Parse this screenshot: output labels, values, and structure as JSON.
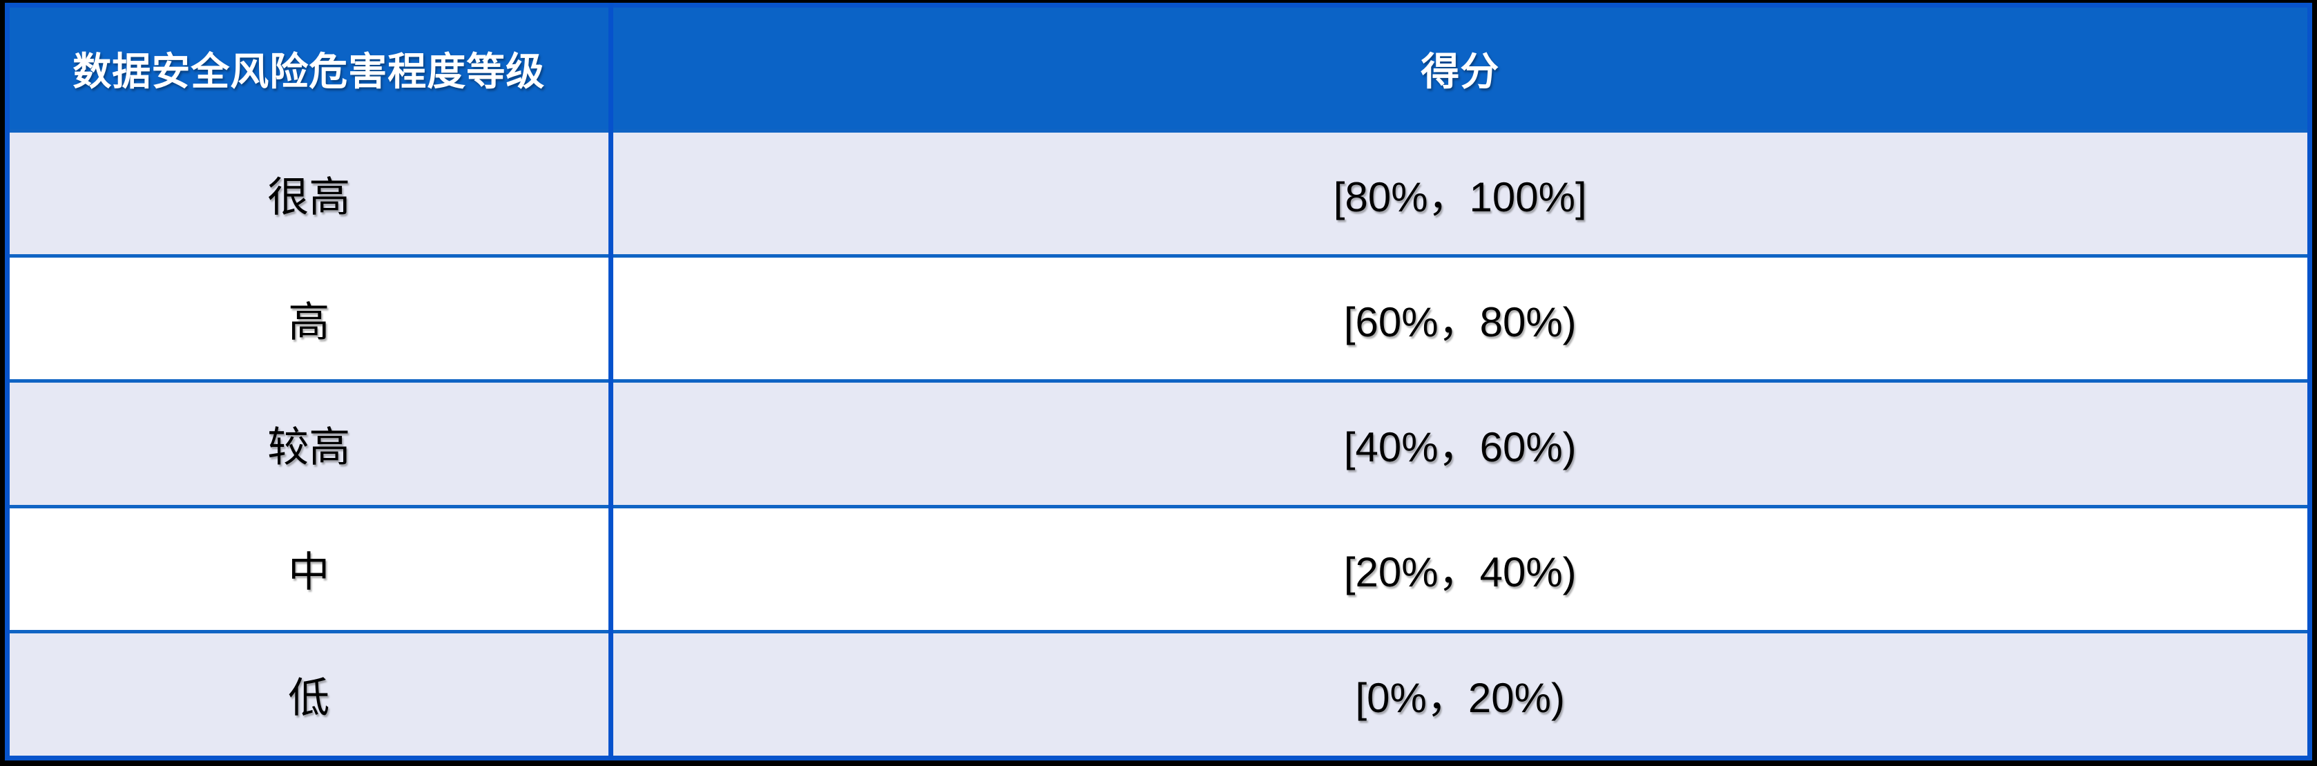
{
  "table": {
    "header": {
      "level_label": "数据安全风险危害程度等级",
      "score_label": "得分"
    },
    "rows": [
      {
        "level": "很高",
        "score": "[80%，100%]"
      },
      {
        "level": "高",
        "score": "[60%，80%)"
      },
      {
        "level": "较高",
        "score": "[40%，60%)"
      },
      {
        "level": "中",
        "score": "[20%，40%)"
      },
      {
        "level": "低",
        "score": "[0%，20%)"
      }
    ]
  },
  "colors": {
    "header_bg": "#0b63c6",
    "outer_border": "#0854cb",
    "vertical_divider": "#0652cc",
    "horizontal_divider": "#1064c4",
    "row_alternate": "#e6e8f4",
    "row_plain": "#ffffff",
    "frame": "#000000",
    "header_text": "#ffffff",
    "cell_text": "#000000"
  }
}
